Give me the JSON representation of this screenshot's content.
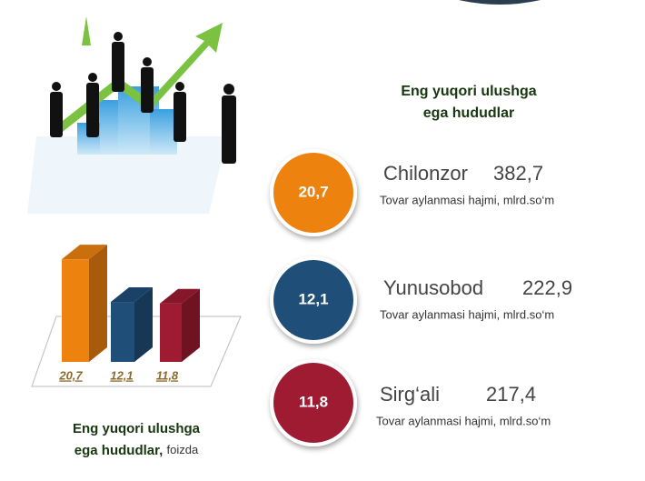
{
  "heading": [
    "Eng yuqori ulushga",
    "ega hududlar"
  ],
  "bar_chart": {
    "values": [
      20.7,
      12.1,
      11.8
    ],
    "value_labels": [
      "20,7",
      "12,1",
      "11,8"
    ],
    "colors": [
      "#ee820f",
      "#1f4e79",
      "#9e1b32"
    ],
    "caption": [
      "Eng yuqori ulushga",
      "ega hududlar,",
      "foizda"
    ]
  },
  "regions": [
    {
      "name": "Chilonzor",
      "turnover": "382,7",
      "note": "Tovar aylanmasi hajmi, mlrd.so‘m"
    },
    {
      "name": "Yunusobod",
      "turnover": "222,9",
      "note": "Tovar aylanmasi hajmi, mlrd.so‘m"
    },
    {
      "name": "Sirg‘ali",
      "turnover": "217,4",
      "note": "Tovar aylanmasi hajmi, mlrd.so‘m"
    }
  ]
}
